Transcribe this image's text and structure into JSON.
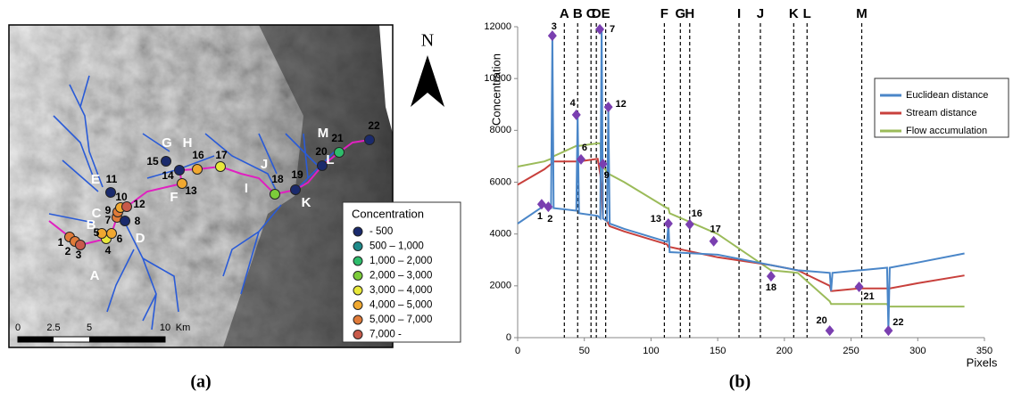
{
  "map": {
    "north": "N",
    "points": [
      {
        "label": "1",
        "color": "#e07b39"
      },
      {
        "label": "2",
        "color": "#e07b39"
      },
      {
        "label": "3",
        "color": "#c85a4a"
      },
      {
        "label": "4",
        "color": "#e8e83a"
      },
      {
        "label": "5",
        "color": "#f0a830"
      },
      {
        "label": "6",
        "color": "#f0a830"
      },
      {
        "label": "7",
        "color": "#e07b39"
      },
      {
        "label": "8",
        "color": "#1a2a6c"
      },
      {
        "label": "9",
        "color": "#e07b39"
      },
      {
        "label": "10",
        "color": "#f0a830"
      },
      {
        "label": "11",
        "color": "#1a2a6c"
      },
      {
        "label": "12",
        "color": "#c85a4a"
      },
      {
        "label": "13",
        "color": "#f0a830"
      },
      {
        "label": "14",
        "color": "#1a2a6c"
      },
      {
        "label": "15",
        "color": "#1a2a6c"
      },
      {
        "label": "16",
        "color": "#f0a830"
      },
      {
        "label": "17",
        "color": "#e8e83a"
      },
      {
        "label": "18",
        "color": "#7ccc3a"
      },
      {
        "label": "19",
        "color": "#1a2a6c"
      },
      {
        "label": "20",
        "color": "#1a2a6c"
      },
      {
        "label": "21",
        "color": "#2ebd6b"
      },
      {
        "label": "22",
        "color": "#1a2a6c"
      }
    ],
    "letters": [
      "A",
      "B",
      "C",
      "D",
      "E",
      "F",
      "G",
      "H",
      "I",
      "J",
      "K",
      "L",
      "M"
    ],
    "legend": {
      "title": "Concentration",
      "classes": [
        {
          "label": "- 500",
          "color": "#1a2a6c"
        },
        {
          "label": "500 – 1,000",
          "color": "#1f8a8a"
        },
        {
          "label": "1,000 – 2,000",
          "color": "#2ebd6b"
        },
        {
          "label": "2,000 – 3,000",
          "color": "#7ccc3a"
        },
        {
          "label": "3,000 – 4,000",
          "color": "#e8e83a"
        },
        {
          "label": "4,000 – 5,000",
          "color": "#f0a830"
        },
        {
          "label": "5,000 – 7,000",
          "color": "#e07b39"
        },
        {
          "label": "7,000 -",
          "color": "#c85a4a"
        }
      ]
    },
    "scale": {
      "labels": [
        "0",
        "2.5",
        "5",
        "10",
        "Km"
      ]
    }
  },
  "panel_labels": [
    "(a)",
    "(b)"
  ],
  "chart_data": {
    "type": "line",
    "xlabel": "Pixels",
    "ylabel": "Concentration",
    "x": [
      0,
      20,
      25,
      26,
      27,
      44,
      45,
      46,
      60,
      62,
      63,
      64,
      67,
      68,
      69,
      80,
      112,
      113,
      114,
      150,
      190,
      210,
      234,
      235,
      236,
      256,
      257,
      277,
      278,
      279,
      300,
      335
    ],
    "series": [
      {
        "name": "Euclidean distance",
        "color": "#4a86c8",
        "values": [
          4400,
          5100,
          5000,
          11600,
          5000,
          4900,
          8600,
          4800,
          4700,
          4600,
          11900,
          4600,
          4500,
          8900,
          4400,
          4200,
          3700,
          4400,
          3300,
          3200,
          2800,
          2600,
          2500,
          1800,
          2500,
          2600,
          2600,
          2700,
          300,
          2700,
          2900,
          3250
        ]
      },
      {
        "name": "Stream distance",
        "color": "#c8403c",
        "values": [
          5900,
          6500,
          6700,
          6700,
          6800,
          6800,
          6800,
          6800,
          6900,
          6300,
          5700,
          4600,
          4500,
          4400,
          4300,
          4100,
          3600,
          3500,
          3500,
          3100,
          2800,
          2600,
          2000,
          1800,
          1800,
          1900,
          1900,
          1900,
          1900,
          1900,
          2100,
          2400
        ]
      },
      {
        "name": "Flow accumulation",
        "color": "#9bbb59",
        "values": [
          6600,
          6800,
          6900,
          6900,
          7000,
          7400,
          7400,
          7400,
          7500,
          7500,
          6800,
          6600,
          6400,
          6300,
          6300,
          6000,
          5000,
          5000,
          4800,
          4000,
          2600,
          2500,
          1400,
          1300,
          1300,
          1300,
          1300,
          1300,
          1200,
          1200,
          1200,
          1200
        ]
      }
    ],
    "vlines": [
      {
        "label": "A",
        "x": 35
      },
      {
        "label": "B",
        "x": 45
      },
      {
        "label": "C",
        "x": 55
      },
      {
        "label": "D",
        "x": 59
      },
      {
        "label": "E",
        "x": 66
      },
      {
        "label": "F",
        "x": 110
      },
      {
        "label": "G",
        "x": 122
      },
      {
        "label": "H",
        "x": 129
      },
      {
        "label": "I",
        "x": 166
      },
      {
        "label": "J",
        "x": 182
      },
      {
        "label": "K",
        "x": 207
      },
      {
        "label": "L",
        "x": 217
      },
      {
        "label": "M",
        "x": 258
      }
    ],
    "markers": {
      "color": "#7a3fb0",
      "labels": [
        "1",
        "2",
        "3",
        "4",
        "6",
        "7",
        "9",
        "12",
        "13",
        "16",
        "17",
        "18",
        "20",
        "21",
        "22"
      ],
      "x": [
        18,
        23,
        26,
        44,
        47.5,
        61.6,
        64,
        68,
        113,
        129,
        147,
        190,
        234,
        256,
        278
      ],
      "y": [
        5150,
        5050,
        11650,
        8600,
        6880,
        11900,
        6700,
        8900,
        4400,
        4370,
        3720,
        2370,
        270,
        1960,
        270
      ]
    },
    "xlim": [
      0,
      350
    ],
    "xticks": [
      0,
      50,
      100,
      150,
      200,
      250,
      300,
      350
    ],
    "ylim": [
      0,
      12000
    ],
    "yticks": [
      0,
      2000,
      4000,
      6000,
      8000,
      10000,
      12000
    ]
  }
}
